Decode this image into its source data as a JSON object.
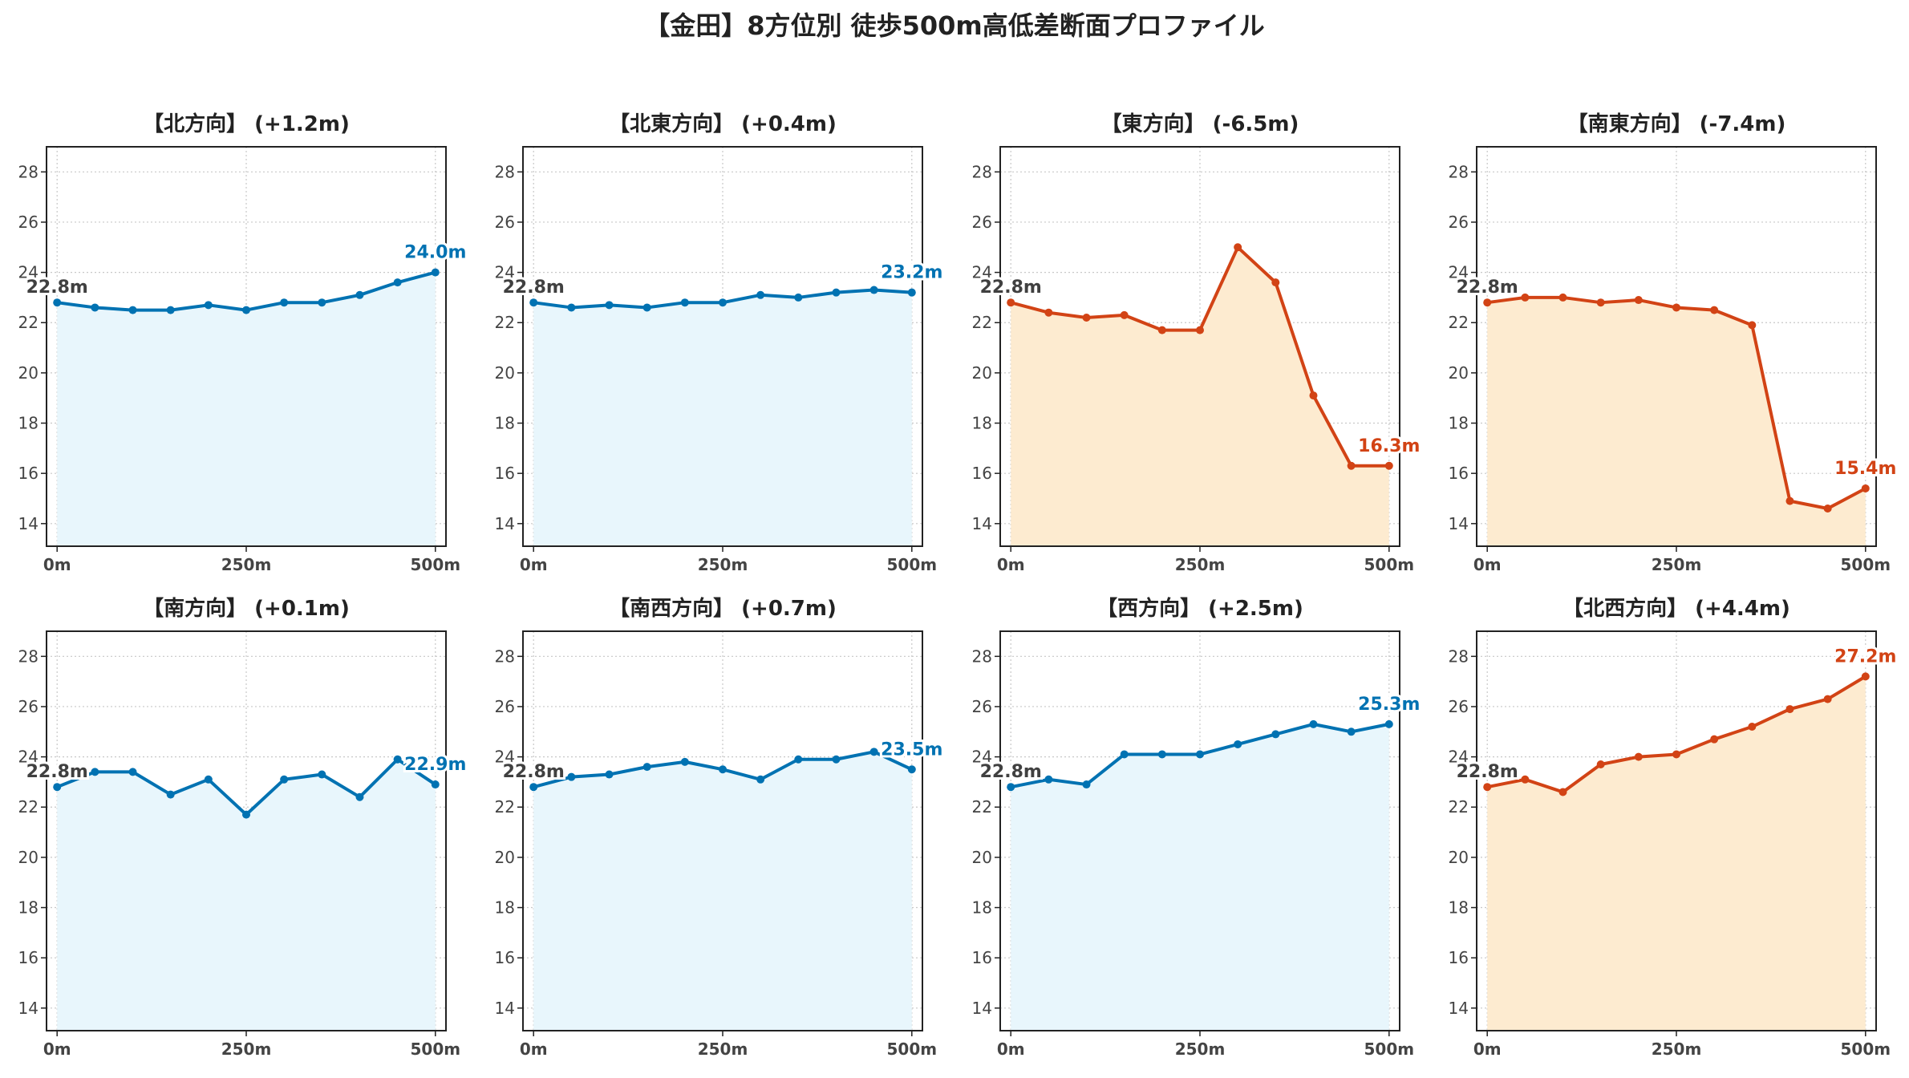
{
  "figure": {
    "title": "【金田】8方位別 徒歩500m高低差断面プロファイル"
  },
  "colors": {
    "up": "#0072b2",
    "up_fill": "#e8f6fc",
    "down": "#d24315",
    "down_fill": "#fdebd0",
    "start_label": "#404040",
    "grid": "#c8c8c8",
    "tick_text": "#444444"
  },
  "axes": {
    "x_ticks": [
      0,
      250,
      500
    ],
    "x_tick_labels": [
      "0m",
      "250m",
      "500m"
    ],
    "y_ticks": [
      14,
      16,
      18,
      20,
      22,
      24,
      26,
      28
    ],
    "ylim": [
      13.1,
      29.0
    ],
    "xlim": [
      -14,
      514
    ],
    "grid": true
  },
  "chart_data": [
    {
      "type": "line",
      "title": "【北方向】 (+1.2m)",
      "tone": "up",
      "x": [
        0,
        50,
        100,
        150,
        200,
        250,
        300,
        350,
        400,
        450,
        500
      ],
      "values": [
        22.8,
        22.6,
        22.5,
        22.5,
        22.7,
        22.5,
        22.8,
        22.8,
        23.1,
        23.6,
        24.0
      ],
      "start_label": "22.8m",
      "end_label": "24.0m"
    },
    {
      "type": "line",
      "title": "【北東方向】 (+0.4m)",
      "tone": "up",
      "x": [
        0,
        50,
        100,
        150,
        200,
        250,
        300,
        350,
        400,
        450,
        500
      ],
      "values": [
        22.8,
        22.6,
        22.7,
        22.6,
        22.8,
        22.8,
        23.1,
        23.0,
        23.2,
        23.3,
        23.2
      ],
      "start_label": "22.8m",
      "end_label": "23.2m"
    },
    {
      "type": "line",
      "title": "【東方向】 (-6.5m)",
      "tone": "down",
      "x": [
        0,
        50,
        100,
        150,
        200,
        250,
        300,
        350,
        400,
        450,
        500
      ],
      "values": [
        22.8,
        22.4,
        22.2,
        22.3,
        21.7,
        21.7,
        25.0,
        23.6,
        19.1,
        16.3,
        16.3
      ],
      "start_label": "22.8m",
      "end_label": "16.3m"
    },
    {
      "type": "line",
      "title": "【南東方向】 (-7.4m)",
      "tone": "down",
      "x": [
        0,
        50,
        100,
        150,
        200,
        250,
        300,
        350,
        400,
        450,
        500
      ],
      "values": [
        22.8,
        23.0,
        23.0,
        22.8,
        22.9,
        22.6,
        22.5,
        21.9,
        14.9,
        14.6,
        15.4
      ],
      "start_label": "22.8m",
      "end_label": "15.4m"
    },
    {
      "type": "line",
      "title": "【南方向】 (+0.1m)",
      "tone": "up",
      "x": [
        0,
        50,
        100,
        150,
        200,
        250,
        300,
        350,
        400,
        450,
        500
      ],
      "values": [
        22.8,
        23.4,
        23.4,
        22.5,
        23.1,
        21.7,
        23.1,
        23.3,
        22.4,
        23.9,
        22.9
      ],
      "start_label": "22.8m",
      "end_label": "22.9m"
    },
    {
      "type": "line",
      "title": "【南西方向】 (+0.7m)",
      "tone": "up",
      "x": [
        0,
        50,
        100,
        150,
        200,
        250,
        300,
        350,
        400,
        450,
        500
      ],
      "values": [
        22.8,
        23.2,
        23.3,
        23.6,
        23.8,
        23.5,
        23.1,
        23.9,
        23.9,
        24.2,
        23.5
      ],
      "start_label": "22.8m",
      "end_label": "23.5m"
    },
    {
      "type": "line",
      "title": "【西方向】 (+2.5m)",
      "tone": "up",
      "x": [
        0,
        50,
        100,
        150,
        200,
        250,
        300,
        350,
        400,
        450,
        500
      ],
      "values": [
        22.8,
        23.1,
        22.9,
        24.1,
        24.1,
        24.1,
        24.5,
        24.9,
        25.3,
        25.0,
        25.3
      ],
      "start_label": "22.8m",
      "end_label": "25.3m"
    },
    {
      "type": "line",
      "title": "【北西方向】 (+4.4m)",
      "tone": "down",
      "x": [
        0,
        50,
        100,
        150,
        200,
        250,
        300,
        350,
        400,
        450,
        500
      ],
      "values": [
        22.8,
        23.1,
        22.6,
        23.7,
        24.0,
        24.1,
        24.7,
        25.2,
        25.9,
        26.3,
        27.2
      ],
      "start_label": "22.8m",
      "end_label": "27.2m"
    }
  ]
}
